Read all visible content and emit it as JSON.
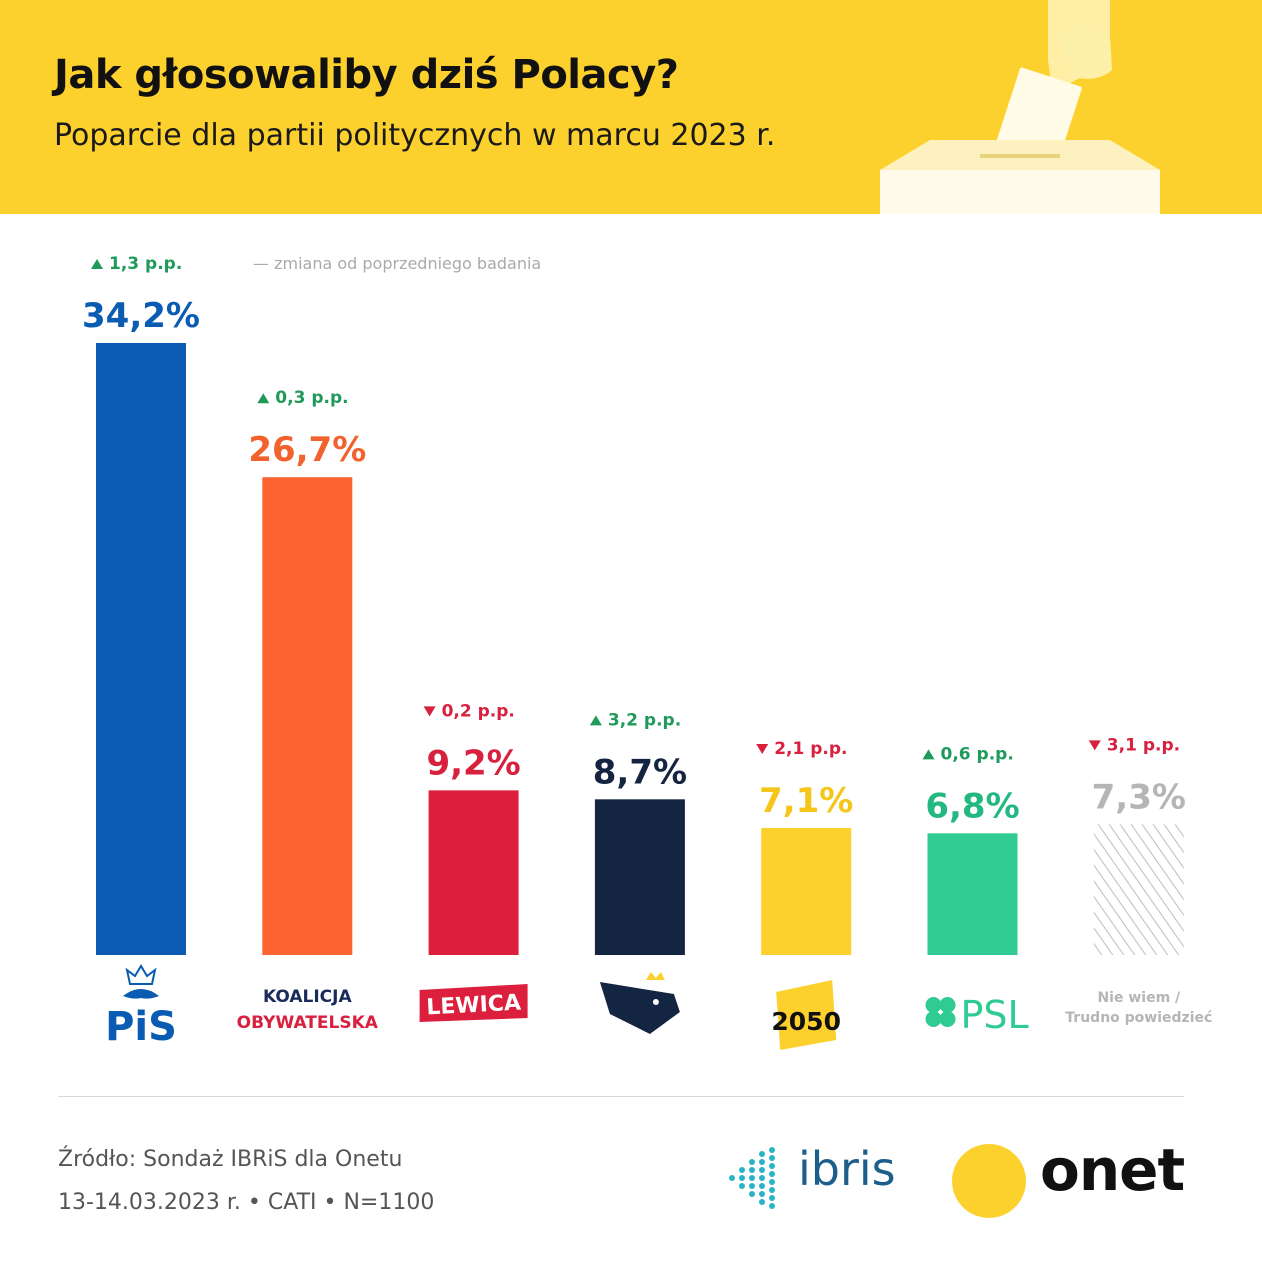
{
  "header": {
    "title": "Jak głosowaliby dziś Polacy?",
    "subtitle": "Poparcie dla partii politycznych w marcu 2023 r."
  },
  "chart_data": {
    "type": "bar",
    "title": "Jak głosowaliby dziś Polacy?",
    "subtitle": "Poparcie dla partii politycznych w marcu 2023 r.",
    "legend_note": "— zmiana od poprzedniego badania",
    "ylim": [
      0,
      34.2
    ],
    "bars": [
      {
        "id": "pis",
        "value": 34.2,
        "label": "34,2%",
        "change": "1,3 p.p.",
        "direction": "up",
        "color": "#0a5cb3",
        "value_color": "#0a5cb3",
        "logo": "pis-logo",
        "logo_lines": [
          "PiS"
        ]
      },
      {
        "id": "ko",
        "value": 26.7,
        "label": "26,7%",
        "change": "0,3 p.p.",
        "direction": "up",
        "color": "#fd6432",
        "value_color": "#f2622e",
        "logo": "ko-logo",
        "logo_lines": [
          "KOALICJA",
          "OBYWATELSKA"
        ]
      },
      {
        "id": "lewica",
        "value": 9.2,
        "label": "9,2%",
        "change": "0,2 p.p.",
        "direction": "down",
        "color": "#dd1f3e",
        "value_color": "#d8203f",
        "logo": "lewica-logo",
        "logo_lines": [
          "LEWICA"
        ]
      },
      {
        "id": "konfederacja",
        "value": 8.7,
        "label": "8,7%",
        "change": "3,2 p.p.",
        "direction": "up",
        "color": "#142542",
        "value_color": "#142542",
        "logo": "konfederacja-logo",
        "logo_lines": []
      },
      {
        "id": "polska2050",
        "value": 7.1,
        "label": "7,1%",
        "change": "2,1 p.p.",
        "direction": "down",
        "color": "#fdd12d",
        "value_color": "#f5c518",
        "logo": "polska2050-logo",
        "logo_lines": [
          "2050"
        ]
      },
      {
        "id": "psl",
        "value": 6.8,
        "label": "6,8%",
        "change": "0,6 p.p.",
        "direction": "up",
        "color": "#2fcb93",
        "value_color": "#23b881",
        "logo": "psl-logo",
        "logo_lines": [
          "PSL"
        ]
      },
      {
        "id": "niewiem",
        "value": 7.3,
        "label": "7,3%",
        "change": "3,1 p.p.",
        "direction": "down",
        "color": "hatch",
        "value_color": "#b5b5b5",
        "logo": "none",
        "logo_lines": [
          "Nie wiem /",
          "Trudno powiedzieć"
        ]
      }
    ],
    "colors": {
      "up": "#1f9a5b",
      "down": "#d8203f",
      "note": "#aaaaaa"
    }
  },
  "footer": {
    "source": "Źródło: Sondaż IBRiS dla Onetu",
    "meta": "13-14.03.2023 r.  •  CATI  •  N=1100",
    "ibris_logo": "ibris",
    "onet_logo": "onet"
  }
}
